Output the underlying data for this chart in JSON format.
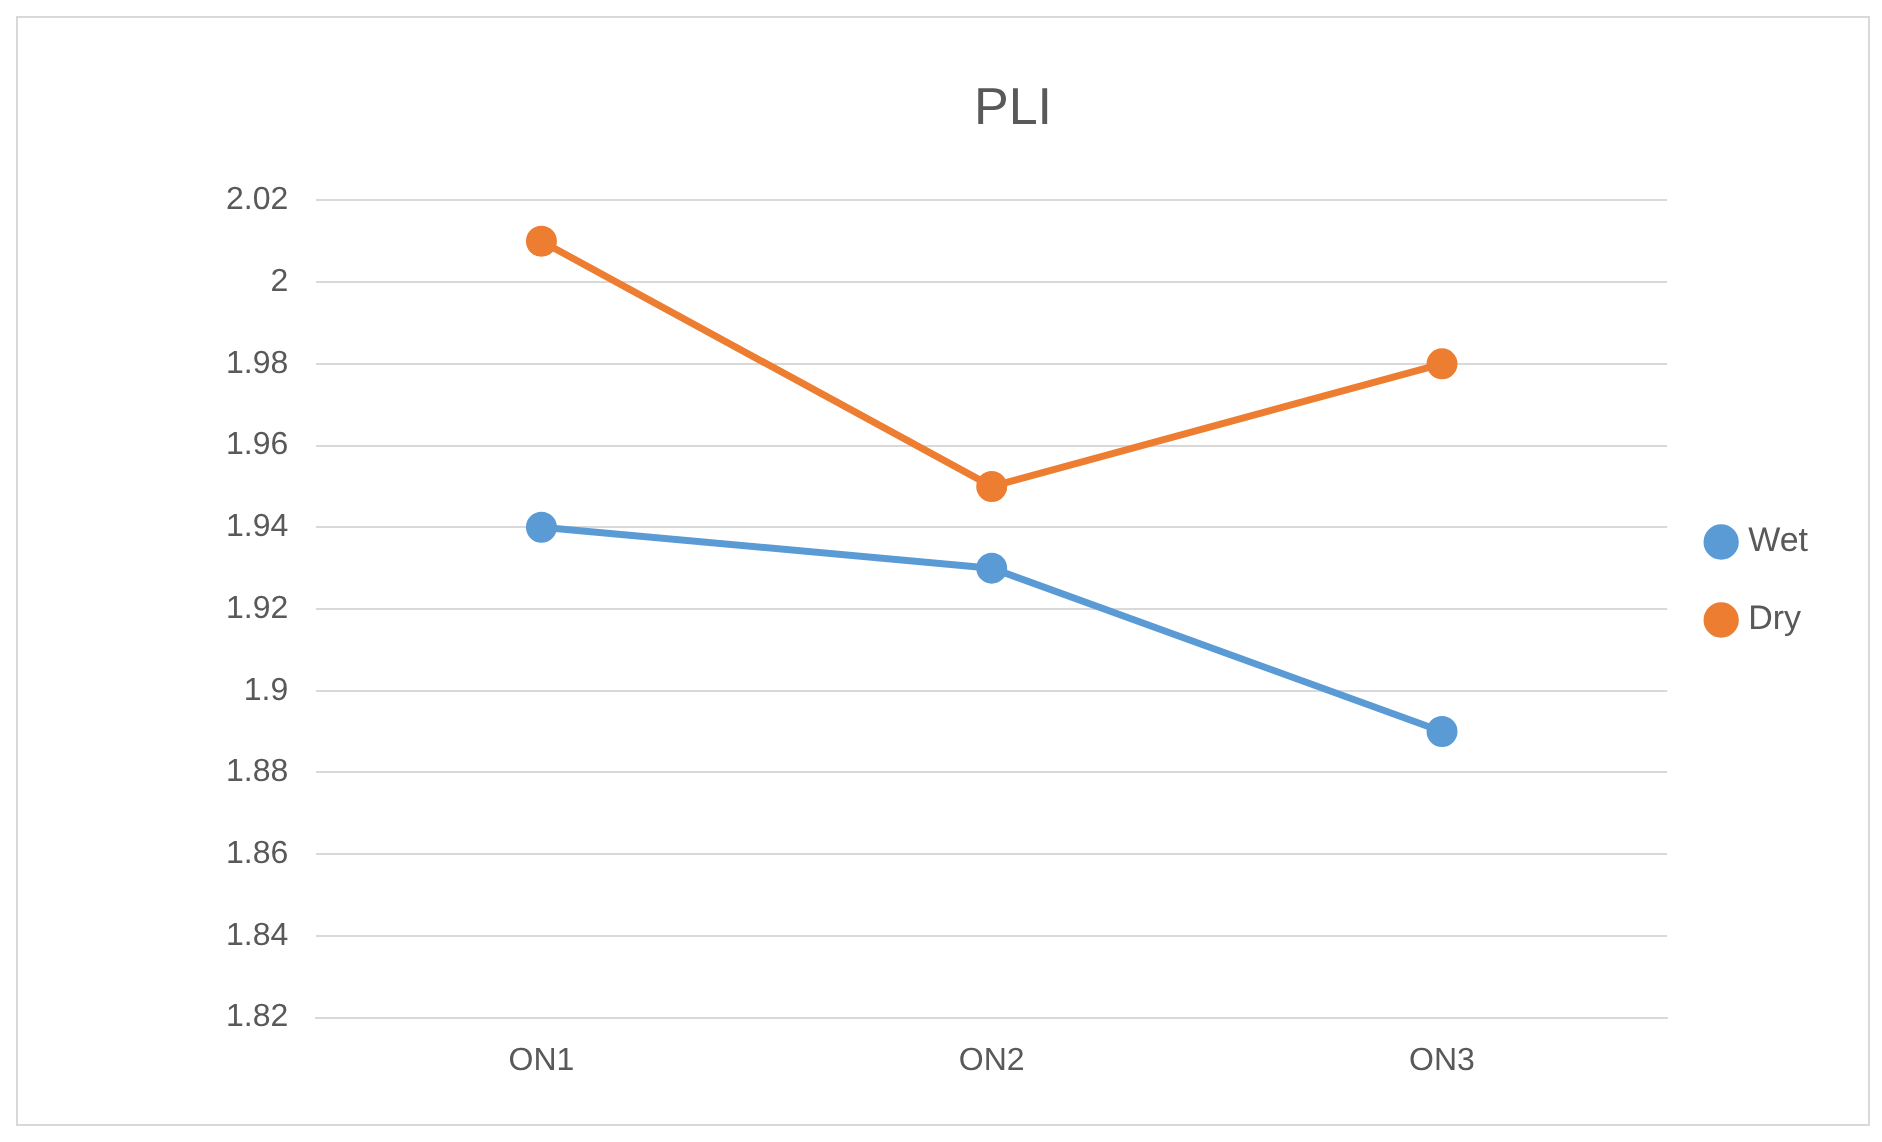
{
  "chart_data": {
    "type": "line",
    "title": "PLI",
    "categories": [
      "ON1",
      "ON2",
      "ON3"
    ],
    "series": [
      {
        "name": "Wet",
        "color": "#5b9bd5",
        "values": [
          1.94,
          1.93,
          1.89
        ]
      },
      {
        "name": "Dry",
        "color": "#ed7d31",
        "values": [
          2.01,
          1.95,
          1.98
        ]
      }
    ],
    "ylim": [
      1.82,
      2.02
    ],
    "yticks": [
      1.82,
      1.84,
      1.86,
      1.88,
      1.9,
      1.92,
      1.94,
      1.96,
      1.98,
      2,
      2.02
    ],
    "grid": "y",
    "legend": "right",
    "marker": "circle"
  }
}
